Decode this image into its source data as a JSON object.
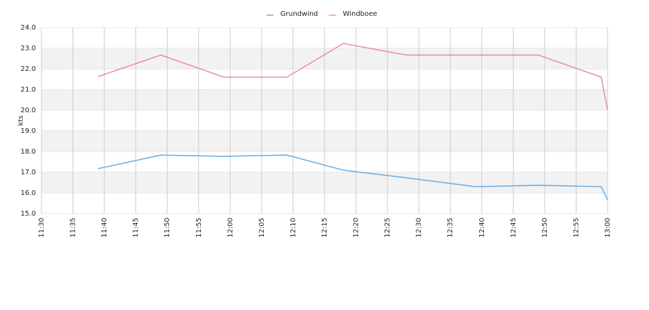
{
  "chart_data": {
    "type": "line",
    "y_label": "kts",
    "x": [
      "11:39",
      "11:49",
      "11:59",
      "12:09",
      "12:18",
      "12:28",
      "12:39",
      "12:49",
      "12:59",
      "13:00"
    ],
    "series": [
      {
        "name": "Grundwind",
        "color": "#6aaee8",
        "values": [
          17.17,
          17.83,
          17.77,
          17.83,
          17.1,
          16.73,
          16.3,
          16.37,
          16.3,
          15.67
        ]
      },
      {
        "name": "Windboee",
        "color": "#ee88bb",
        "values": [
          21.63,
          22.67,
          21.6,
          21.6,
          23.23,
          22.67,
          22.67,
          22.67,
          21.6,
          20.0
        ]
      }
    ],
    "xlim": [
      "11:30",
      "13:00"
    ],
    "xticks": [
      "11:30",
      "11:35",
      "11:40",
      "11:45",
      "11:50",
      "11:55",
      "12:00",
      "12:05",
      "12:10",
      "12:15",
      "12:20",
      "12:25",
      "12:30",
      "12:35",
      "12:40",
      "12:45",
      "12:50",
      "12:55",
      "13:00"
    ],
    "ylim": [
      15,
      24
    ],
    "yticks": [
      {
        "value": 15,
        "label": "15.0"
      },
      {
        "value": 16,
        "label": "16.0"
      },
      {
        "value": 17,
        "label": "17.0"
      },
      {
        "value": 18,
        "label": "18.0"
      },
      {
        "value": 19,
        "label": "19.0"
      },
      {
        "value": 20,
        "label": "20.0"
      },
      {
        "value": 21,
        "label": "21.0"
      },
      {
        "value": 22,
        "label": "22.0"
      },
      {
        "value": 23,
        "label": "23.0"
      },
      {
        "value": 24,
        "label": "24.0"
      }
    ],
    "grid": true,
    "legend": "top"
  }
}
